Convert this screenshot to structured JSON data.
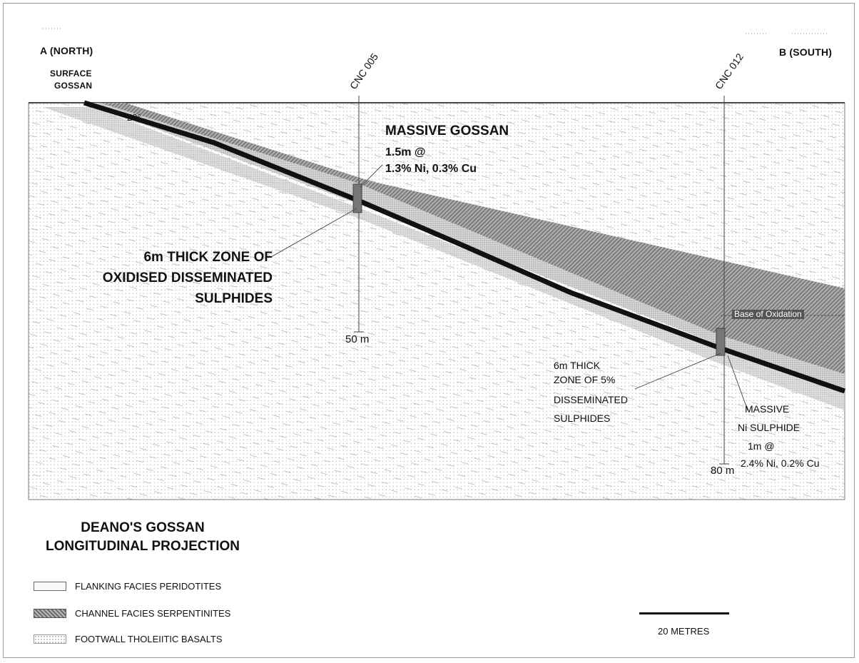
{
  "section": {
    "end_a": "A (NORTH)",
    "end_b": "B (SOUTH)",
    "surface_label_line1": "SURFACE",
    "surface_label_line2": "GOSSAN",
    "dip_angle": "20°",
    "base_of_oxidation": "Base of Oxidation"
  },
  "drillholes": [
    {
      "id": "CNC 005",
      "depth_label": "50 m"
    },
    {
      "id": "CNC 012",
      "depth_label": "80 m"
    }
  ],
  "annotations": {
    "massive_gossan": [
      "MASSIVE GOSSAN",
      "1.5m @",
      "1.3% Ni, 0.3% Cu"
    ],
    "oxidised_zone": [
      "6m THICK ZONE OF",
      "OXIDISED DISSEMINATED",
      "SULPHIDES"
    ],
    "disseminated_zone": [
      "6m THICK",
      "ZONE OF 5%",
      "DISSEMINATED",
      "SULPHIDES"
    ],
    "massive_sulphide": [
      "MASSIVE",
      "Ni SULPHIDE",
      "1m @",
      "2.4% Ni, 0.2% Cu"
    ]
  },
  "title": {
    "line1": "DEANO'S GOSSAN",
    "line2": "LONGITUDINAL PROJECTION"
  },
  "legend": [
    {
      "label": "FLANKING FACIES PERIDOTITES",
      "pattern": "blank"
    },
    {
      "label": "CHANNEL FACIES SERPENTINITES",
      "pattern": "dark-stipple"
    },
    {
      "label": "FOOTWALL THOLEIITIC BASALTS",
      "pattern": "fine-dots"
    }
  ],
  "scale": {
    "label": "20 METRES"
  },
  "colors": {
    "ore": "#111111",
    "channel": "#8a8a8a",
    "channel_dark": "#5e5e5e",
    "footwall_dot": "#8c8c8c"
  }
}
